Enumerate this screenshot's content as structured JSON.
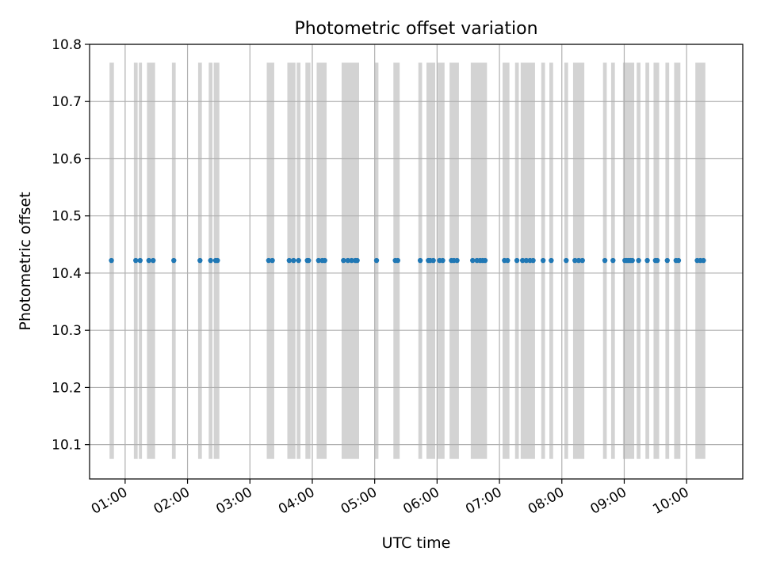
{
  "chart_data": {
    "type": "scatter",
    "title": "Photometric offset variation",
    "xlabel": "UTC time",
    "ylabel": "Photometric offset",
    "xlim_hours": [
      0.43,
      10.9
    ],
    "ylim": [
      10.04,
      10.8
    ],
    "grid": true,
    "x_tick_values_hours": [
      1,
      2,
      3,
      4,
      5,
      6,
      7,
      8,
      9,
      10
    ],
    "x_tick_labels": [
      "01:00",
      "02:00",
      "03:00",
      "04:00",
      "05:00",
      "06:00",
      "07:00",
      "08:00",
      "09:00",
      "10:00"
    ],
    "y_tick_values": [
      10.1,
      10.2,
      10.3,
      10.4,
      10.5,
      10.6,
      10.7,
      10.8
    ],
    "y_tick_labels": [
      "10.1",
      "10.2",
      "10.3",
      "10.4",
      "10.5",
      "10.6",
      "10.7",
      "10.8"
    ],
    "series": [
      {
        "name": "Photometric offset",
        "color": "#1f77b4",
        "y_value": 10.422,
        "x_hours": [
          0.78,
          1.17,
          1.24,
          1.38,
          1.45,
          1.78,
          2.2,
          2.37,
          2.45,
          2.48,
          3.3,
          3.36,
          3.63,
          3.7,
          3.78,
          3.92,
          3.94,
          4.1,
          4.16,
          4.2,
          4.5,
          4.57,
          4.63,
          4.69,
          4.72,
          5.03,
          5.33,
          5.37,
          5.73,
          5.86,
          5.89,
          5.94,
          6.04,
          6.09,
          6.23,
          6.27,
          6.32,
          6.57,
          6.64,
          6.69,
          6.73,
          6.77,
          7.08,
          7.13,
          7.28,
          7.37,
          7.43,
          7.49,
          7.54,
          7.7,
          7.83,
          8.07,
          8.21,
          8.27,
          8.33,
          8.69,
          8.82,
          9.01,
          9.04,
          9.07,
          9.1,
          9.13,
          9.23,
          9.37,
          9.5,
          9.53,
          9.69,
          9.83,
          9.87,
          10.17,
          10.22,
          10.27
        ]
      }
    ],
    "shaded_spans": {
      "color": "#d3d3d3",
      "y_range": [
        10.075,
        10.768
      ],
      "intervals_hours": [
        [
          0.75,
          0.82
        ],
        [
          1.14,
          1.2
        ],
        [
          1.22,
          1.27
        ],
        [
          1.35,
          1.48
        ],
        [
          1.75,
          1.81
        ],
        [
          2.17,
          2.23
        ],
        [
          2.34,
          2.4
        ],
        [
          2.42,
          2.51
        ],
        [
          3.27,
          3.39
        ],
        [
          3.6,
          3.73
        ],
        [
          3.75,
          3.81
        ],
        [
          3.89,
          3.97
        ],
        [
          4.07,
          4.23
        ],
        [
          4.47,
          4.75
        ],
        [
          5.0,
          5.06
        ],
        [
          5.3,
          5.4
        ],
        [
          5.7,
          5.76
        ],
        [
          5.83,
          5.97
        ],
        [
          6.01,
          6.12
        ],
        [
          6.2,
          6.35
        ],
        [
          6.54,
          6.8
        ],
        [
          7.05,
          7.16
        ],
        [
          7.25,
          7.31
        ],
        [
          7.34,
          7.57
        ],
        [
          7.67,
          7.73
        ],
        [
          7.8,
          7.86
        ],
        [
          8.04,
          8.1
        ],
        [
          8.18,
          8.36
        ],
        [
          8.66,
          8.72
        ],
        [
          8.79,
          8.85
        ],
        [
          8.98,
          9.16
        ],
        [
          9.2,
          9.26
        ],
        [
          9.34,
          9.4
        ],
        [
          9.47,
          9.56
        ],
        [
          9.66,
          9.72
        ],
        [
          9.8,
          9.9
        ],
        [
          10.14,
          10.3
        ]
      ]
    }
  }
}
